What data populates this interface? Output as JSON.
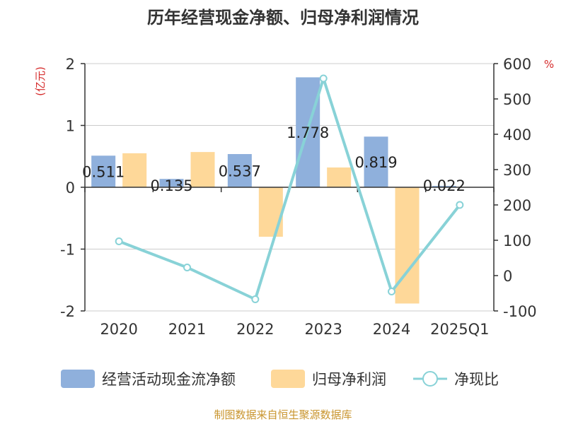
{
  "chart_data": {
    "type": "bar+line",
    "title": "历年经营现金净额、归母净利润情况",
    "y_left_unit": "(亿元)",
    "y_right_unit": "%",
    "categories": [
      "2020",
      "2021",
      "2022",
      "2023",
      "2024",
      "2025Q1"
    ],
    "y_left": {
      "min": -2,
      "max": 2,
      "ticks": [
        "2",
        "1",
        "0",
        "-1",
        "-2"
      ]
    },
    "y_right": {
      "min": -100,
      "max": 600,
      "ticks": [
        "600",
        "500",
        "400",
        "300",
        "200",
        "100",
        "0",
        "-100"
      ]
    },
    "series": [
      {
        "name": "经营活动现金流净额",
        "type": "bar",
        "axis": "left",
        "color": "#8fb0dc",
        "values": [
          0.511,
          0.135,
          0.537,
          1.778,
          0.819,
          0.022
        ],
        "labels": [
          "0.511",
          "0.135",
          "0.537",
          "1.778",
          "0.819",
          "0.022"
        ]
      },
      {
        "name": "归母净利润",
        "type": "bar",
        "axis": "left",
        "color": "#fed899",
        "values": [
          0.55,
          0.57,
          -0.8,
          0.32,
          -1.88,
          0.0
        ]
      },
      {
        "name": "净现比",
        "type": "line",
        "axis": "right",
        "color": "#88d2d7",
        "values": [
          97,
          23,
          -67,
          558,
          -45,
          200
        ]
      }
    ],
    "grid": true,
    "legend": "bottom"
  },
  "footer": {
    "source": "制图数据来自恒生聚源数据库"
  }
}
